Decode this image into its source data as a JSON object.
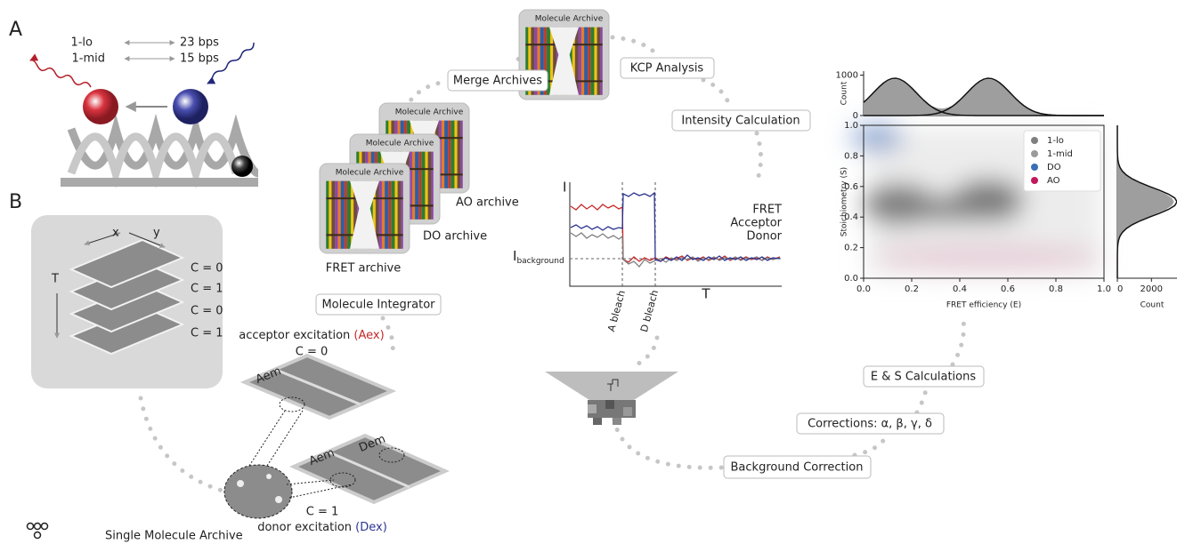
{
  "panel_a": {
    "label": "A",
    "states": [
      "1-lo",
      "1-mid"
    ],
    "rates": [
      "23 bps",
      "15 bps"
    ]
  },
  "panel_b": {
    "label": "B",
    "stack": {
      "x": "x",
      "y": "y",
      "t": "T",
      "conditions": [
        "C = 0",
        "C = 1",
        "C = 0",
        "C = 1"
      ]
    },
    "aex": {
      "caption": "acceptor excitation ",
      "tag": "(Aex)",
      "condition": "C = 0",
      "channel": "Aem"
    },
    "dex": {
      "condition": "C = 1",
      "caption": "donor excitation ",
      "tag": "(Dex)",
      "channels": [
        "Aem",
        "Dem"
      ]
    }
  },
  "legend": "Single Molecule Archive",
  "archives": {
    "icon_title": "Molecule Archive",
    "items": [
      "AO archive",
      "DO archive",
      "FRET archive"
    ]
  },
  "steps": [
    "Merge Archives",
    "KCP Analysis",
    "Intensity Calculation",
    "Molecule Integrator",
    "E & S Calculations",
    "Corrections: α, β, γ, δ",
    "Background Correction"
  ],
  "trace": {
    "y_label": "I",
    "baseline": "I",
    "baseline_sub": "background",
    "legend": [
      "FRET",
      "Acceptor",
      "Donor"
    ],
    "events": [
      "A bleach",
      "D bleach"
    ],
    "x_label": "T"
  },
  "es_plot": {
    "top_hist": {
      "y_label": "Count",
      "ylim": [
        0,
        1100
      ],
      "yticks": [
        0,
        1000
      ]
    },
    "scatter": {
      "x_label": "FRET efficiency (E)",
      "y_label": "Stoichiometry (S)",
      "xlim": [
        0,
        1
      ],
      "ylim": [
        0,
        1
      ],
      "xticks": [
        {
          "value": 0,
          "label": "0.0"
        },
        0.2,
        0.4,
        0.6,
        0.8,
        {
          "value": 1,
          "label": "1.0"
        }
      ],
      "yticks": [
        {
          "value": 0,
          "label": "0.0"
        },
        0.2,
        0.4,
        0.6,
        0.8,
        {
          "value": 1,
          "label": "1.0"
        }
      ],
      "legend": [
        {
          "name": "1-lo",
          "color": "#7f7f7f"
        },
        {
          "name": "1-mid",
          "color": "#9a9a9a"
        },
        {
          "name": "DO",
          "color": "#3a6fb5"
        },
        {
          "name": "AO",
          "color": "#c2185b"
        }
      ]
    },
    "side_hist": {
      "x_label": "Count",
      "xlim": [
        0,
        3500
      ],
      "xticks": [
        0,
        2000
      ]
    }
  }
}
